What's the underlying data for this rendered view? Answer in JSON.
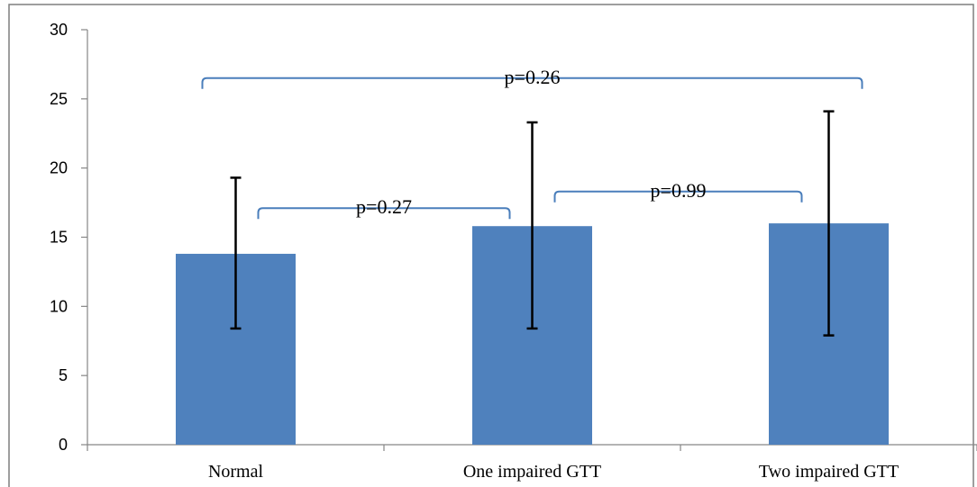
{
  "chart_data": {
    "type": "bar",
    "title": "",
    "xlabel": "",
    "ylabel": "",
    "categories": [
      "Normal",
      "One impaired GTT",
      "Two impaired GTT"
    ],
    "values": [
      13.8,
      15.8,
      16.0
    ],
    "error_low": [
      8.4,
      8.4,
      7.9
    ],
    "error_high": [
      19.3,
      23.3,
      24.1
    ],
    "ylim": [
      0,
      30
    ],
    "yticks": [
      0,
      5,
      10,
      15,
      20,
      25,
      30
    ],
    "ytick_labels": [
      "0",
      "5",
      "10",
      "15",
      "20",
      "25",
      "30"
    ],
    "grid": false,
    "legend": "none",
    "bar_color": "#4f81bd",
    "bracket_color": "#4a7ebb",
    "annotations": [
      {
        "label": "p=0.26",
        "from": 0,
        "to": 2,
        "level": 26.5
      },
      {
        "label": "p=0.27",
        "from": 0,
        "to": 1,
        "level": 17.1
      },
      {
        "label": "p=0.99",
        "from": 1,
        "to": 2,
        "level": 18.3
      }
    ]
  }
}
